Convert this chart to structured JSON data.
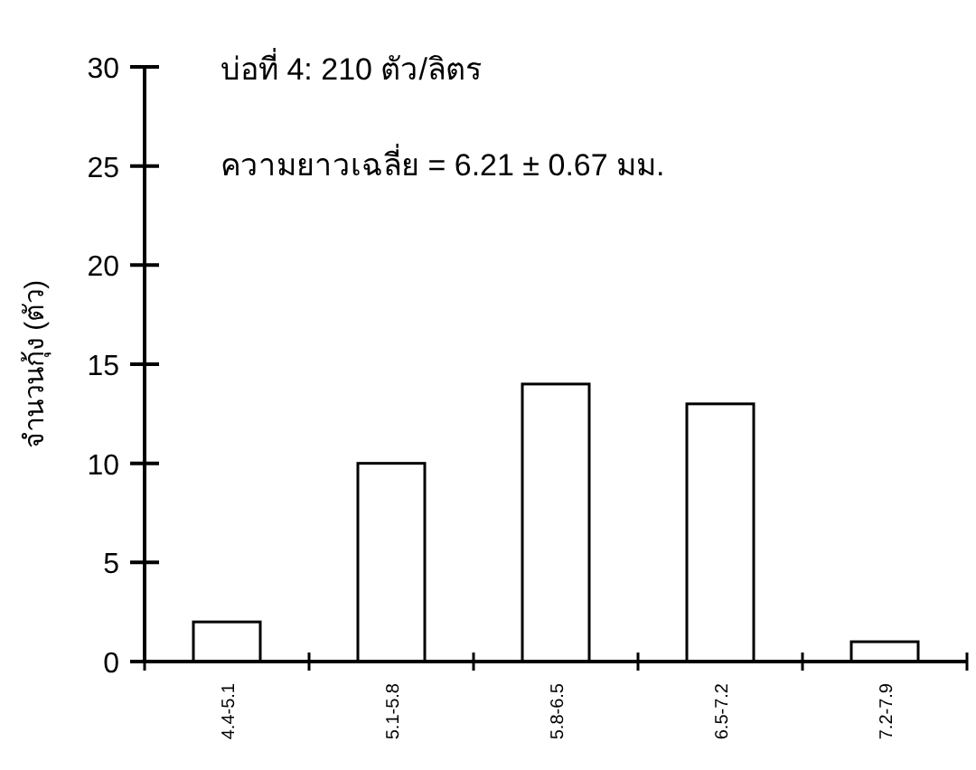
{
  "chart_data": {
    "type": "bar",
    "title": "บ่อที่ 4:  210  ตัว/ลิตร",
    "subtitle": "ความยาวเฉลี่ย = 6.21 ± 0.67 มม.",
    "ylabel": "จำนวนกุ้ง (ตัว)",
    "categories": [
      "4.4-5.1",
      "5.1-5.8",
      "5.8-6.5",
      "6.5-7.2",
      "7.2-7.9"
    ],
    "values": [
      2,
      10,
      14,
      13,
      1
    ],
    "color": "#ffffff",
    "ylim": [
      0,
      30
    ],
    "yticks": [
      0,
      5,
      10,
      15,
      20,
      25,
      30
    ],
    "grid": false
  }
}
